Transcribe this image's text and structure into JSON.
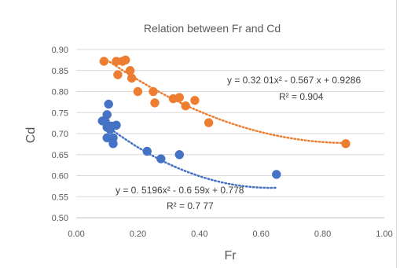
{
  "chart_data": {
    "type": "scatter",
    "title": "Relation between Fr and Cd",
    "xlabel": "Fr",
    "ylabel": "Cd",
    "xlim": [
      0,
      1.0
    ],
    "ylim": [
      0.5,
      0.9
    ],
    "x_ticks": [
      "0.00",
      "0.20",
      "0.40",
      "0.60",
      "0.80",
      "1.00"
    ],
    "y_ticks": [
      "0.50",
      "0.55",
      "0.60",
      "0.65",
      "0.70",
      "0.75",
      "0.80",
      "0.85",
      "0.90"
    ],
    "grid": "horizontal",
    "series": [
      {
        "color": "#ED7D31",
        "points": [
          {
            "x": 0.09,
            "y": 0.872
          },
          {
            "x": 0.13,
            "y": 0.872
          },
          {
            "x": 0.135,
            "y": 0.84
          },
          {
            "x": 0.15,
            "y": 0.872
          },
          {
            "x": 0.16,
            "y": 0.875
          },
          {
            "x": 0.175,
            "y": 0.85
          },
          {
            "x": 0.18,
            "y": 0.832
          },
          {
            "x": 0.2,
            "y": 0.8
          },
          {
            "x": 0.25,
            "y": 0.8
          },
          {
            "x": 0.255,
            "y": 0.773
          },
          {
            "x": 0.315,
            "y": 0.783
          },
          {
            "x": 0.335,
            "y": 0.786
          },
          {
            "x": 0.355,
            "y": 0.766
          },
          {
            "x": 0.385,
            "y": 0.779
          },
          {
            "x": 0.43,
            "y": 0.726
          },
          {
            "x": 0.875,
            "y": 0.676
          }
        ],
        "trendline": {
          "type": "polynomial",
          "a": 0.3201,
          "b": -0.567,
          "c": 0.9286,
          "x_range": [
            0.09,
            0.875
          ]
        },
        "equation": "y = 0.32 01x² - 0.567  x + 0.9286",
        "r2": "R² = 0.904"
      },
      {
        "color": "#4472C4",
        "points": [
          {
            "x": 0.085,
            "y": 0.73
          },
          {
            "x": 0.095,
            "y": 0.728
          },
          {
            "x": 0.1,
            "y": 0.745
          },
          {
            "x": 0.1,
            "y": 0.715
          },
          {
            "x": 0.1,
            "y": 0.69
          },
          {
            "x": 0.105,
            "y": 0.77
          },
          {
            "x": 0.11,
            "y": 0.71
          },
          {
            "x": 0.115,
            "y": 0.718
          },
          {
            "x": 0.12,
            "y": 0.69
          },
          {
            "x": 0.12,
            "y": 0.676
          },
          {
            "x": 0.13,
            "y": 0.72
          },
          {
            "x": 0.23,
            "y": 0.658
          },
          {
            "x": 0.275,
            "y": 0.64
          },
          {
            "x": 0.335,
            "y": 0.65
          },
          {
            "x": 0.65,
            "y": 0.603
          }
        ],
        "trendline": {
          "type": "polynomial",
          "a": 0.5196,
          "b": -0.6559,
          "c": 0.778,
          "x_range": [
            0.085,
            0.65
          ]
        },
        "equation": "y = 0. 5196x² - 0.6  59x + 0.778",
        "r2": "R² = 0.7  77"
      }
    ]
  }
}
